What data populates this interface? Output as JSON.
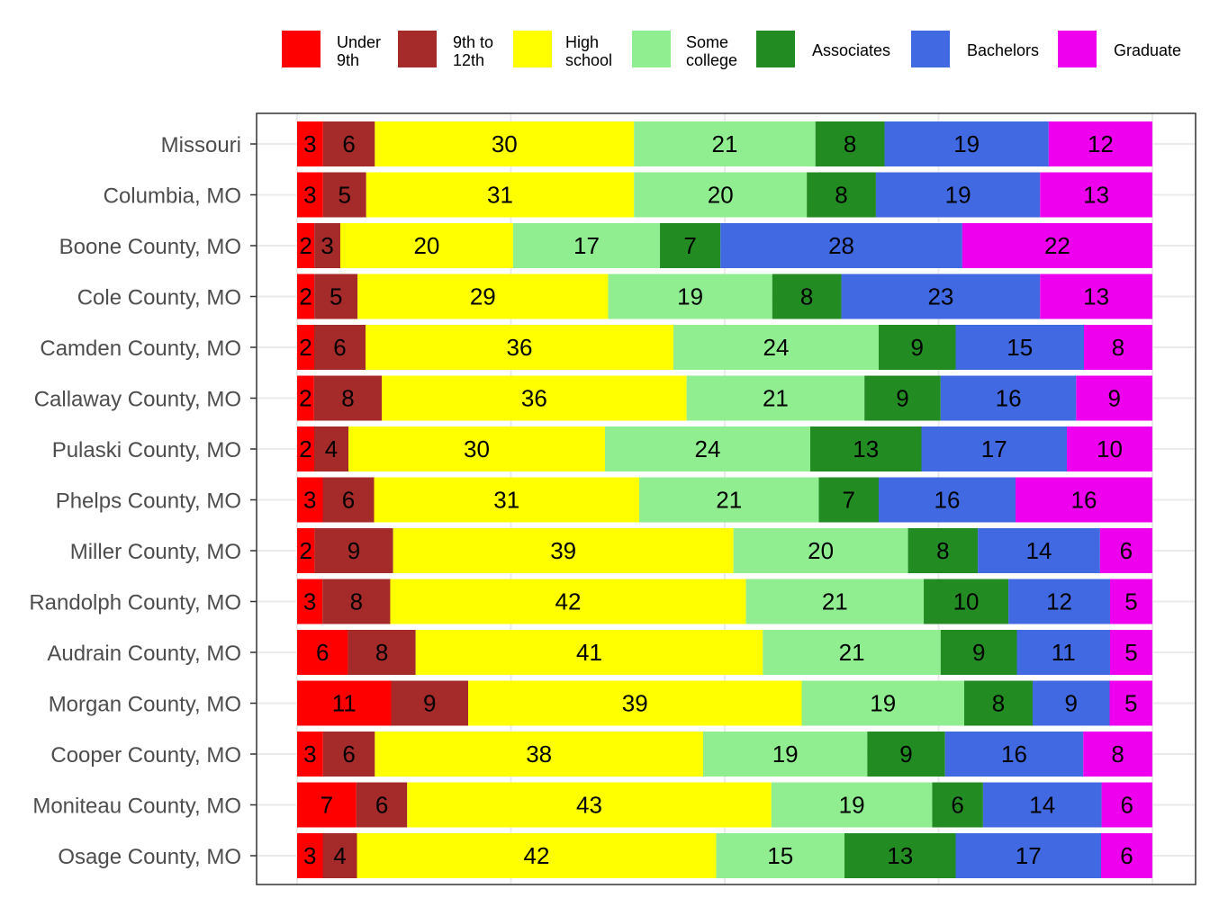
{
  "chart_data": {
    "type": "bar",
    "orientation": "horizontal",
    "stacked": true,
    "normalized": true,
    "grid": true,
    "legend_position": "top",
    "title": "",
    "xlabel": "",
    "ylabel": "",
    "categories": [
      "Missouri",
      "Columbia, MO",
      "Boone County, MO",
      "Cole County, MO",
      "Camden County, MO",
      "Callaway County, MO",
      "Pulaski County, MO",
      "Phelps County, MO",
      "Miller County, MO",
      "Randolph County, MO",
      "Audrain County, MO",
      "Morgan County, MO",
      "Cooper County, MO",
      "Moniteau County, MO",
      "Osage County, MO"
    ],
    "series": [
      {
        "name": "Under\n9th",
        "color": "#ff0000",
        "values": [
          3,
          3,
          2,
          2,
          2,
          2,
          2,
          3,
          2,
          3,
          6,
          11,
          3,
          7,
          3
        ]
      },
      {
        "name": "9th to\n12th",
        "color": "#a52a2a",
        "values": [
          6,
          5,
          3,
          5,
          6,
          8,
          4,
          6,
          9,
          8,
          8,
          9,
          6,
          6,
          4
        ]
      },
      {
        "name": "High\nschool",
        "color": "#ffff00",
        "values": [
          30,
          31,
          20,
          29,
          36,
          36,
          30,
          31,
          39,
          42,
          41,
          39,
          38,
          43,
          42
        ]
      },
      {
        "name": "Some\ncollege",
        "color": "#90ee90",
        "values": [
          21,
          20,
          17,
          19,
          24,
          21,
          24,
          21,
          20,
          21,
          21,
          19,
          19,
          19,
          15
        ]
      },
      {
        "name": "Associates",
        "color": "#228b22",
        "values": [
          8,
          8,
          7,
          8,
          9,
          9,
          13,
          7,
          8,
          10,
          9,
          8,
          9,
          6,
          13
        ]
      },
      {
        "name": "Bachelors",
        "color": "#4169e1",
        "values": [
          19,
          19,
          28,
          23,
          15,
          16,
          17,
          16,
          14,
          12,
          11,
          9,
          16,
          14,
          17
        ]
      },
      {
        "name": "Graduate",
        "color": "#ee00ee",
        "values": [
          12,
          13,
          22,
          13,
          8,
          9,
          10,
          16,
          6,
          5,
          5,
          5,
          8,
          6,
          6
        ]
      }
    ]
  }
}
